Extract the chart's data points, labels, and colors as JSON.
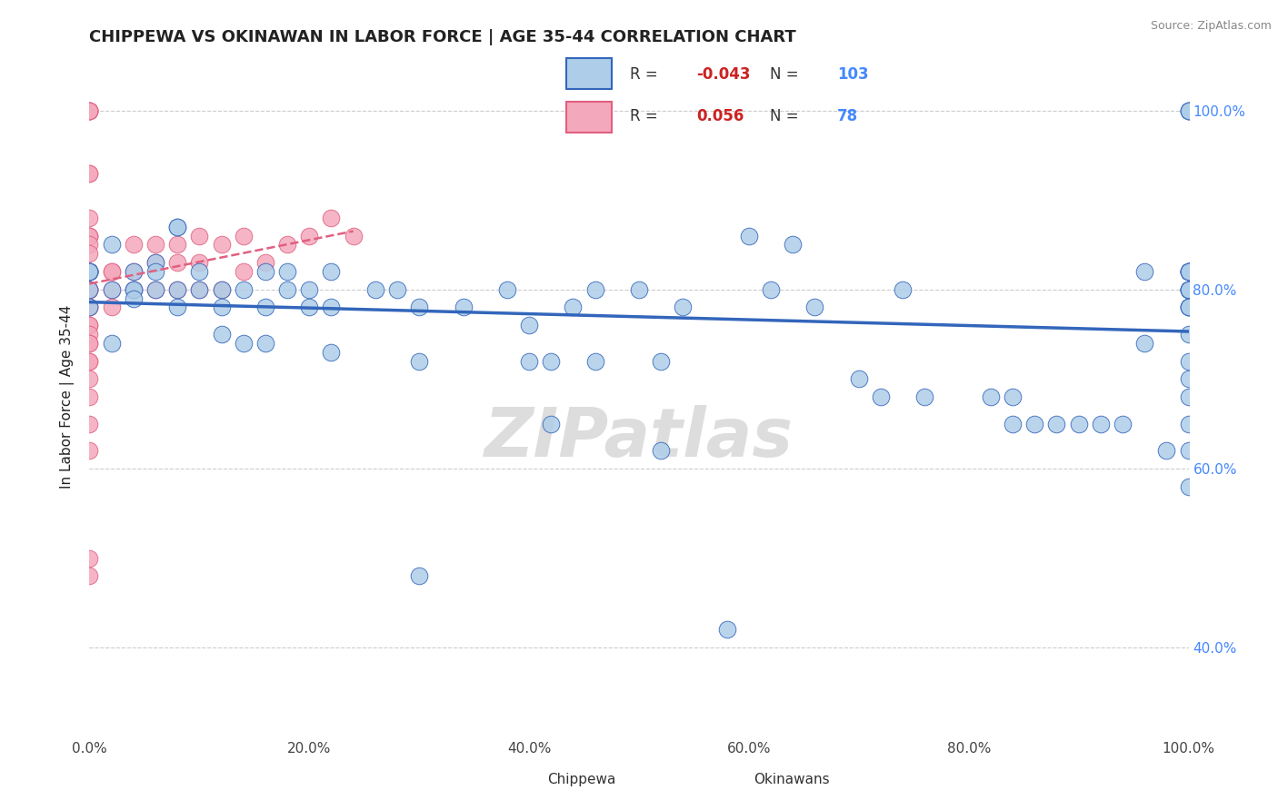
{
  "title": "CHIPPEWA VS OKINAWAN IN LABOR FORCE | AGE 35-44 CORRELATION CHART",
  "source": "Source: ZipAtlas.com",
  "ylabel": "In Labor Force | Age 35-44",
  "chippewa_r": -0.043,
  "chippewa_n": 103,
  "okinawan_r": 0.056,
  "okinawan_n": 78,
  "chippewa_color": "#aecde8",
  "okinawan_color": "#f4a8bc",
  "trend_chippewa_color": "#3366bb",
  "trend_okinawan_color": "#e06080",
  "watermark": "ZIPatlas",
  "xlim": [
    0.0,
    1.0
  ],
  "ylim": [
    0.3,
    1.06
  ],
  "x_ticks": [
    0.0,
    0.2,
    0.4,
    0.6,
    0.8,
    1.0
  ],
  "y_ticks": [
    0.4,
    0.6,
    0.8,
    1.0
  ],
  "chippewa_x": [
    0.0,
    0.0,
    0.0,
    0.0,
    0.0,
    0.0,
    0.0,
    0.02,
    0.02,
    0.02,
    0.04,
    0.04,
    0.04,
    0.06,
    0.06,
    0.06,
    0.08,
    0.08,
    0.08,
    0.1,
    0.1,
    0.12,
    0.12,
    0.12,
    0.14,
    0.14,
    0.16,
    0.16,
    0.18,
    0.18,
    0.2,
    0.2,
    0.22,
    0.22,
    0.26,
    0.28,
    0.3,
    0.3,
    0.34,
    0.38,
    0.4,
    0.4,
    0.42,
    0.44,
    0.46,
    0.5,
    0.52,
    0.54,
    0.6,
    0.62,
    0.64,
    0.66,
    0.7,
    0.72,
    0.74,
    0.76,
    0.82,
    0.84,
    0.84,
    0.86,
    0.88,
    0.9,
    0.92,
    0.94,
    0.96,
    0.96,
    0.98,
    1.0,
    1.0,
    1.0,
    1.0,
    1.0,
    1.0,
    1.0,
    1.0,
    1.0,
    1.0,
    1.0,
    1.0,
    1.0,
    1.0,
    1.0,
    1.0,
    1.0,
    1.0,
    1.0,
    1.0,
    1.0,
    1.0,
    1.0,
    1.0,
    1.0,
    1.0,
    1.0,
    0.58,
    0.52,
    0.46,
    0.42,
    0.3,
    0.22,
    0.16,
    0.08,
    0.04
  ],
  "chippewa_y": [
    0.82,
    0.82,
    0.82,
    0.82,
    0.82,
    0.8,
    0.78,
    0.85,
    0.8,
    0.74,
    0.8,
    0.8,
    0.82,
    0.83,
    0.8,
    0.82,
    0.87,
    0.78,
    0.8,
    0.8,
    0.82,
    0.8,
    0.78,
    0.75,
    0.8,
    0.74,
    0.82,
    0.78,
    0.82,
    0.8,
    0.8,
    0.78,
    0.82,
    0.78,
    0.8,
    0.8,
    0.78,
    0.72,
    0.78,
    0.8,
    0.76,
    0.72,
    0.72,
    0.78,
    0.8,
    0.8,
    0.72,
    0.78,
    0.86,
    0.8,
    0.85,
    0.78,
    0.7,
    0.68,
    0.8,
    0.68,
    0.68,
    0.68,
    0.65,
    0.65,
    0.65,
    0.65,
    0.65,
    0.65,
    0.82,
    0.74,
    0.62,
    1.0,
    1.0,
    1.0,
    1.0,
    0.82,
    0.82,
    0.82,
    0.82,
    0.82,
    0.82,
    0.8,
    0.8,
    0.8,
    0.8,
    0.8,
    0.8,
    0.78,
    0.78,
    0.78,
    0.78,
    0.75,
    0.72,
    0.7,
    0.68,
    0.65,
    0.62,
    0.58,
    0.42,
    0.62,
    0.72,
    0.65,
    0.48,
    0.73,
    0.74,
    0.87,
    0.79
  ],
  "okinawan_x": [
    0.0,
    0.0,
    0.0,
    0.0,
    0.0,
    0.0,
    0.0,
    0.0,
    0.0,
    0.0,
    0.0,
    0.0,
    0.0,
    0.0,
    0.0,
    0.0,
    0.0,
    0.0,
    0.0,
    0.0,
    0.0,
    0.0,
    0.0,
    0.0,
    0.0,
    0.0,
    0.0,
    0.0,
    0.0,
    0.0,
    0.0,
    0.0,
    0.0,
    0.0,
    0.0,
    0.0,
    0.0,
    0.0,
    0.02,
    0.02,
    0.02,
    0.02,
    0.04,
    0.04,
    0.04,
    0.06,
    0.06,
    0.06,
    0.08,
    0.08,
    0.08,
    0.1,
    0.1,
    0.1,
    0.12,
    0.12,
    0.14,
    0.14,
    0.16,
    0.18,
    0.2,
    0.22,
    0.24
  ],
  "okinawan_y": [
    1.0,
    1.0,
    1.0,
    1.0,
    1.0,
    1.0,
    0.93,
    0.93,
    0.88,
    0.86,
    0.86,
    0.86,
    0.85,
    0.84,
    0.82,
    0.82,
    0.82,
    0.82,
    0.8,
    0.8,
    0.8,
    0.8,
    0.78,
    0.78,
    0.78,
    0.76,
    0.76,
    0.75,
    0.74,
    0.74,
    0.72,
    0.72,
    0.7,
    0.68,
    0.65,
    0.62,
    0.5,
    0.48,
    0.82,
    0.82,
    0.8,
    0.78,
    0.85,
    0.82,
    0.8,
    0.85,
    0.83,
    0.8,
    0.85,
    0.83,
    0.8,
    0.86,
    0.83,
    0.8,
    0.85,
    0.8,
    0.86,
    0.82,
    0.83,
    0.85,
    0.86,
    0.88,
    0.86
  ]
}
